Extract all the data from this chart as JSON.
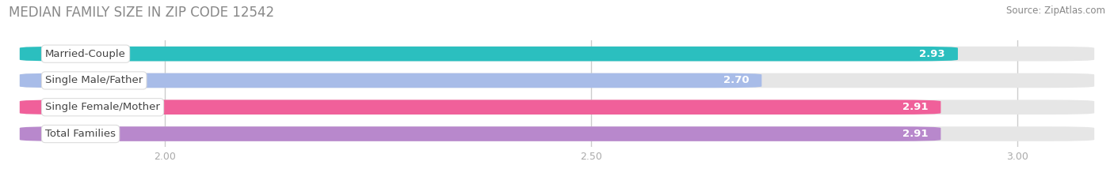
{
  "title": "MEDIAN FAMILY SIZE IN ZIP CODE 12542",
  "source": "Source: ZipAtlas.com",
  "categories": [
    "Married-Couple",
    "Single Male/Father",
    "Single Female/Mother",
    "Total Families"
  ],
  "values": [
    2.93,
    2.7,
    2.91,
    2.91
  ],
  "bar_colors": [
    "#2bbfbf",
    "#a8bce8",
    "#f0609a",
    "#b888cc"
  ],
  "xlim_min": 1.82,
  "xlim_max": 3.1,
  "xticks": [
    2.0,
    2.5,
    3.0
  ],
  "xtick_labels": [
    "2.00",
    "2.50",
    "3.00"
  ],
  "bar_height": 0.55,
  "bar_gap": 0.45,
  "value_fontsize": 9.5,
  "label_fontsize": 9.5,
  "title_fontsize": 12,
  "source_fontsize": 8.5,
  "background_color": "#ffffff",
  "bar_bg_color": "#e6e6e6",
  "label_box_color": "#ffffff",
  "grid_color": "#cccccc",
  "title_color": "#888888",
  "source_color": "#888888",
  "tick_color": "#aaaaaa"
}
